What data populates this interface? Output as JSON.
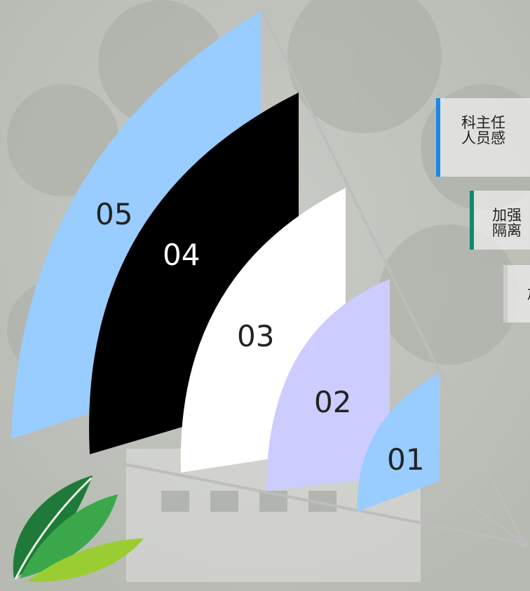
{
  "segments": [
    {
      "label": "01",
      "color": "#99ccff",
      "text_color": "#222222"
    },
    {
      "label": "02",
      "color": "#ccccff",
      "text_color": "#222222"
    },
    {
      "label": "03",
      "color": "#ffffff",
      "text_color": "#222222"
    },
    {
      "label": "04",
      "color": "#000000",
      "text_color": "#ffffff"
    },
    {
      "label": "05",
      "color": "#99ccff",
      "text_color": "#222222"
    }
  ],
  "callouts": [
    {
      "line1": "科主任",
      "line2": "人员感",
      "accent": "#1e88e5"
    },
    {
      "line1": "加强",
      "line2": "隔离",
      "accent": "#0f8a6e"
    },
    {
      "line1": "加",
      "line2": "",
      "accent": "#cccccc"
    }
  ],
  "colors": {
    "frame_line": "#bdbdbd",
    "leaf_dark": "#1f7a3a",
    "leaf_mid": "#3aa84a",
    "leaf_light": "#9acd32"
  },
  "icons": {
    "logo": "leaf-logo-icon"
  }
}
